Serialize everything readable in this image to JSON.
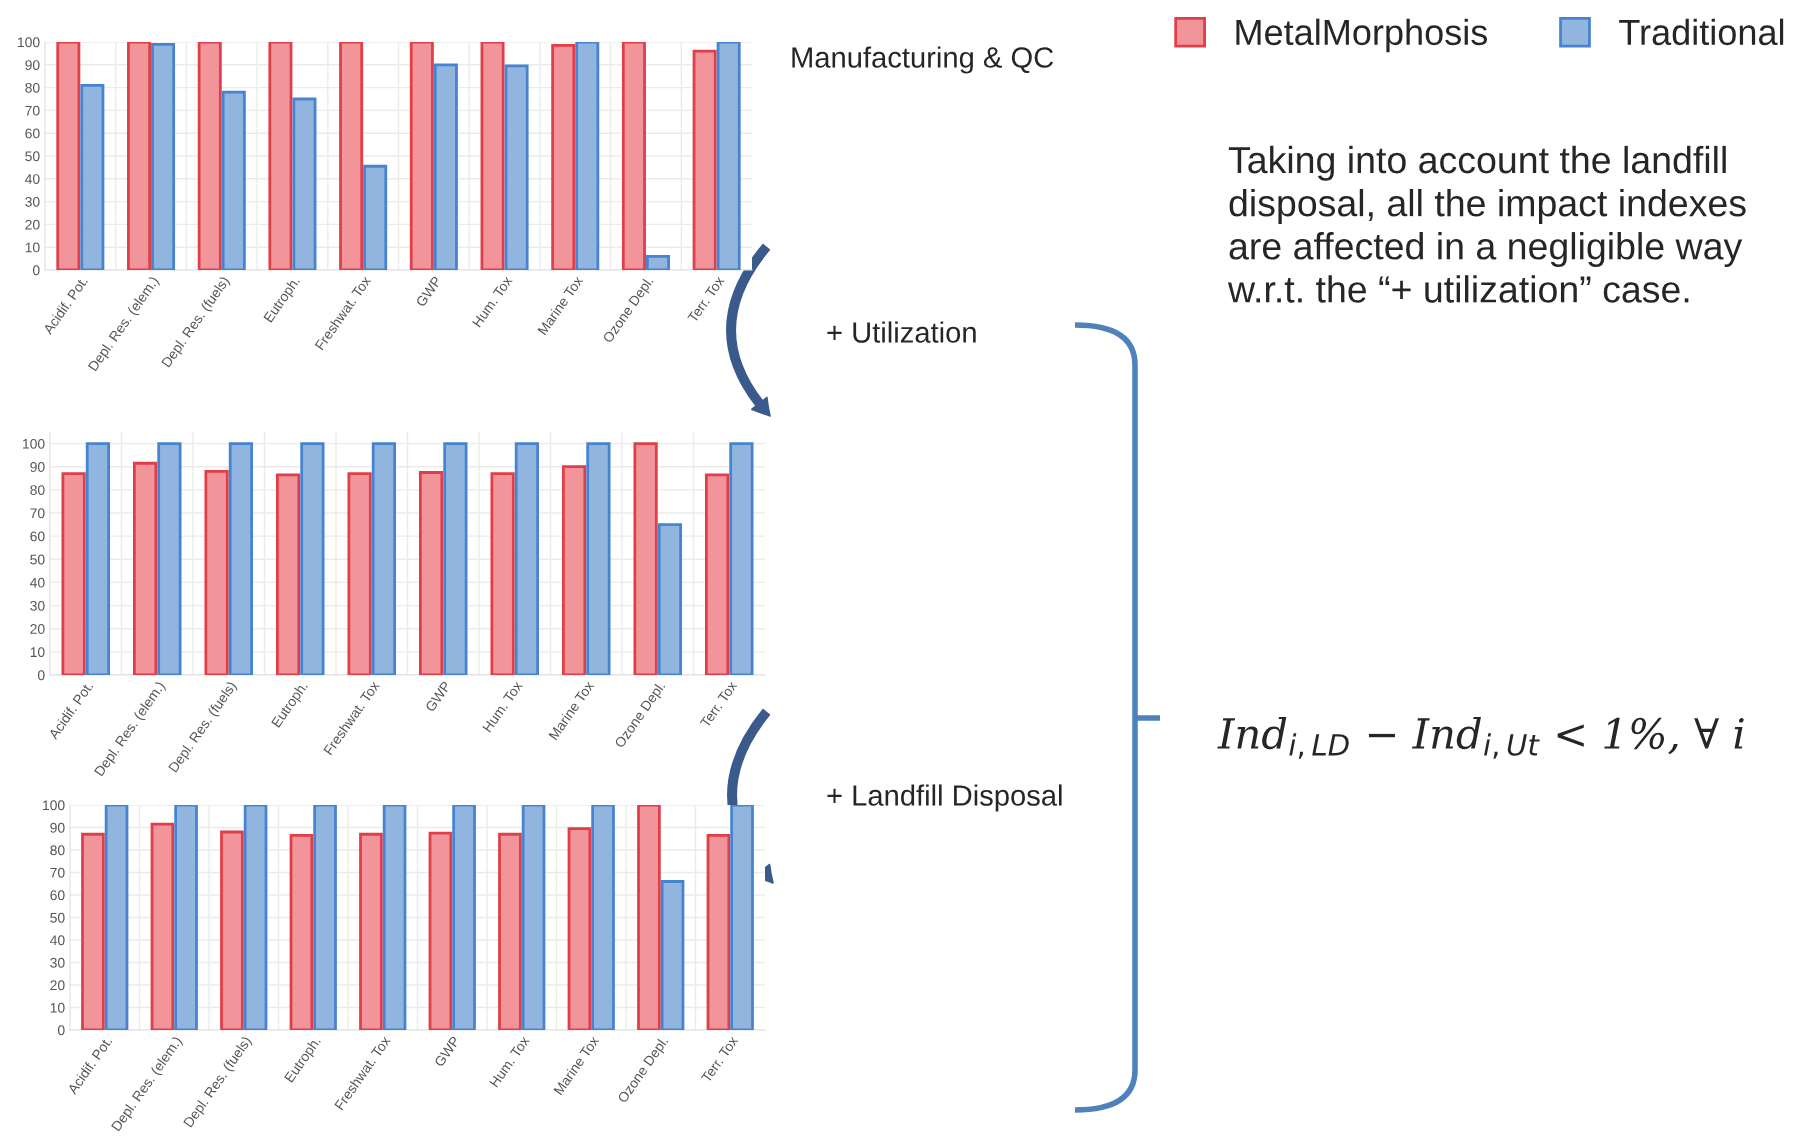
{
  "chart_data": [
    {
      "type": "bar",
      "categories": [
        "Acidif. Pot.",
        "Depl. Res. (elem.)",
        "Depl. Res. (fuels)",
        "Eutroph.",
        "Freshwat. Tox",
        "GWP",
        "Hum. Tox",
        "Marine Tox",
        "Ozone Depl.",
        "Terr. Tox"
      ],
      "series": [
        {
          "name": "MetalMorphosis",
          "color": "#f1959b",
          "values": [
            100,
            100,
            100,
            100,
            100,
            100,
            100,
            98.5,
            100,
            96
          ]
        },
        {
          "name": "Traditional",
          "color": "#92b5e0",
          "values": [
            81,
            99,
            78,
            75,
            45.5,
            90,
            89.5,
            100,
            6,
            100
          ]
        }
      ],
      "ylim": [
        0,
        100
      ],
      "yticks": [
        0,
        10,
        20,
        30,
        40,
        50,
        60,
        70,
        80,
        90,
        100
      ],
      "grid": true,
      "legend": "top right"
    },
    {
      "type": "bar",
      "categories": [
        "Acidif. Pot.",
        "Depl. Res. (elem.)",
        "Depl. Res. (fuels)",
        "Eutroph.",
        "Freshwat. Tox",
        "GWP",
        "Hum. Tox",
        "Marine Tox",
        "Ozone Depl.",
        "Terr. Tox"
      ],
      "series": [
        {
          "color": "#f1959b",
          "values": [
            87,
            91.5,
            88,
            86.5,
            87,
            87.5,
            87,
            90,
            100,
            86.5
          ]
        },
        {
          "color": "#92b5e0",
          "values": [
            100,
            100,
            100,
            100,
            100,
            100,
            100,
            100,
            65,
            100
          ]
        }
      ],
      "ylim": [
        0,
        105
      ],
      "yticks": [
        0,
        10,
        20,
        30,
        40,
        50,
        60,
        70,
        80,
        90,
        100
      ],
      "grid": true
    },
    {
      "type": "bar",
      "categories": [
        "Acidif. Pot.",
        "Depl. Res. (elem.)",
        "Depl. Res. (fuels)",
        "Eutroph.",
        "Freshwat. Tox",
        "GWP",
        "Hum. Tox",
        "Marine Tox",
        "Ozone Depl.",
        "Terr. Tox"
      ],
      "series": [
        {
          "color": "#f1959b",
          "values": [
            87,
            91.5,
            88,
            86.5,
            87,
            87.5,
            87,
            89.5,
            100,
            86.5
          ]
        },
        {
          "color": "#92b5e0",
          "values": [
            100,
            100,
            100,
            100,
            100,
            100,
            100,
            100,
            66,
            100
          ]
        }
      ],
      "ylim": [
        0,
        100
      ],
      "yticks": [
        0,
        10,
        20,
        30,
        40,
        50,
        60,
        70,
        80,
        90,
        100
      ],
      "grid": true
    },
    {
      "type": "other",
      "annotations": [
        "Manufacturing & QC",
        "+ Utilization",
        "+ Landfill Disposal",
        "Taking into account the landfill disposal, all the impact indexes are affected in a negligible way w.r.t. the “+ utilization” case.",
        "Ind$_{i,LD}$ − Ind$_{i,Ut}$ < 1%, ∀ i"
      ]
    }
  ]
}
